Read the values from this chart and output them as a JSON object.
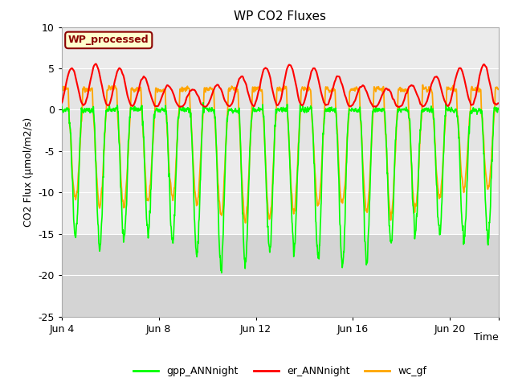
{
  "title": "WP CO2 Fluxes",
  "ylabel": "CO2 Flux (μmol/m2/s)",
  "xlabel": "Time",
  "ylim": [
    -25,
    10
  ],
  "n_days": 18,
  "pts_per_day": 144,
  "gpp_color": "#00ff00",
  "er_color": "#ff0000",
  "wc_color": "#ffa500",
  "grid_color": "#ffffff",
  "plot_bg": "#ebebeb",
  "shade_low_color": "#d4d4d4",
  "shade_mid_color": "#e0e0e0",
  "annotation_text": "WP_processed",
  "annotation_bg": "#ffffcc",
  "annotation_border": "#8b0000",
  "annotation_text_color": "#8b0000",
  "xtick_pos": [
    0,
    4,
    8,
    12,
    16,
    18
  ],
  "xtick_labels": [
    "Jun 4",
    "Jun 8",
    "Jun 12",
    "Jun 16",
    "Jun 20",
    ""
  ],
  "ytick_pos": [
    -25,
    -20,
    -15,
    -10,
    -5,
    0,
    5,
    10
  ],
  "legend_labels": [
    "gpp_ANNnight",
    "er_ANNnight",
    "wc_gf"
  ]
}
